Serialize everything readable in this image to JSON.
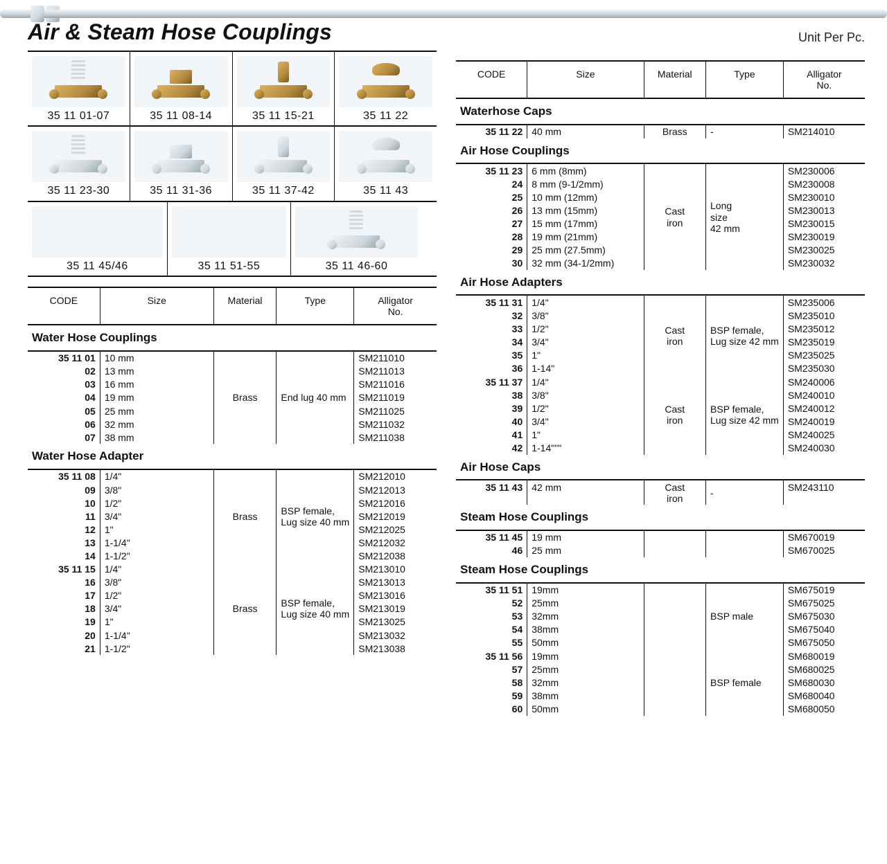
{
  "title": "Air & Steam Hose Couplings",
  "unitPer": "Unit Per Pc.",
  "codePrefix": "35 11 ",
  "columns": {
    "code": "CODE",
    "size": "Size",
    "material": "Material",
    "type": "Type",
    "alligator": "Alligator\nNo."
  },
  "photos": [
    {
      "caption": "35 11 01-07",
      "finish": "brass",
      "shape": "barb"
    },
    {
      "caption": "35 11 08-14",
      "finish": "brass",
      "shape": "hex"
    },
    {
      "caption": "35 11 15-21",
      "finish": "brass",
      "shape": "stem"
    },
    {
      "caption": "35 11 22",
      "finish": "brass",
      "shape": "wing"
    },
    {
      "caption": "35 11 23-30",
      "finish": "steel",
      "shape": "barb"
    },
    {
      "caption": "35 11 31-36",
      "finish": "steel",
      "shape": "hex"
    },
    {
      "caption": "35 11 37-42",
      "finish": "steel",
      "shape": "stem"
    },
    {
      "caption": "35 11 43",
      "finish": "steel",
      "shape": "wing"
    },
    {
      "caption": "35 11 45/46",
      "finish": "steel",
      "shape": "long2"
    },
    {
      "caption": "35 11 51-55",
      "finish": "steel",
      "shape": "long1"
    },
    {
      "caption": "35 11 46-60",
      "finish": "steel",
      "shape": "barb"
    }
  ],
  "leftSections": [
    {
      "title": "Water Hose Couplings",
      "material": "Brass",
      "type": "End lug 40 mm",
      "rows": [
        {
          "suffix": "01",
          "dispCode": "35 11 01",
          "size": "10 mm",
          "all": "SM211010"
        },
        {
          "suffix": "02",
          "dispCode": "02",
          "size": "13 mm",
          "all": "SM211013"
        },
        {
          "suffix": "03",
          "dispCode": "03",
          "size": "16 mm",
          "all": "SM211016"
        },
        {
          "suffix": "04",
          "dispCode": "04",
          "size": "19 mm",
          "all": "SM211019"
        },
        {
          "suffix": "05",
          "dispCode": "05",
          "size": "25 mm",
          "all": "SM211025"
        },
        {
          "suffix": "06",
          "dispCode": "06",
          "size": "32 mm",
          "all": "SM211032"
        },
        {
          "suffix": "07",
          "dispCode": "07",
          "size": "38 mm",
          "all": "SM211038"
        }
      ]
    },
    {
      "title": "Water Hose Adapter",
      "groups": [
        {
          "material": "Brass",
          "type": "BSP female, Lug size 40 mm",
          "rows": [
            {
              "dispCode": "35 11 08",
              "size": "1/4\"",
              "all": "SM212010"
            },
            {
              "dispCode": "09",
              "size": "3/8\"",
              "all": "SM212013"
            },
            {
              "dispCode": "10",
              "size": "1/2\"",
              "all": "SM212016"
            },
            {
              "dispCode": "11",
              "size": "3/4\"",
              "all": "SM212019"
            },
            {
              "dispCode": "12",
              "size": "1\"",
              "all": "SM212025"
            },
            {
              "dispCode": "13",
              "size": "1-1/4\"",
              "all": "SM212032"
            },
            {
              "dispCode": "14",
              "size": "1-1/2\"",
              "all": "SM212038"
            }
          ]
        },
        {
          "material": "Brass",
          "type": "BSP female, Lug size 40 mm",
          "rows": [
            {
              "dispCode": "35 11 15",
              "size": "1/4\"",
              "all": "SM213010"
            },
            {
              "dispCode": "16",
              "size": "3/8\"",
              "all": "SM213013"
            },
            {
              "dispCode": "17",
              "size": "1/2\"",
              "all": "SM213016"
            },
            {
              "dispCode": "18",
              "size": "3/4\"",
              "all": "SM213019"
            },
            {
              "dispCode": "19",
              "size": "1\"",
              "all": "SM213025"
            },
            {
              "dispCode": "20",
              "size": "1-1/4\"",
              "all": "SM213032"
            },
            {
              "dispCode": "21",
              "size": "1-1/2\"",
              "all": "SM213038"
            }
          ]
        }
      ]
    }
  ],
  "rightSections": [
    {
      "title": "Waterhose Caps",
      "groups": [
        {
          "material": "Brass",
          "type": "-",
          "rows": [
            {
              "dispCode": "35 11 22",
              "size": "40 mm",
              "all": "SM214010"
            }
          ]
        }
      ]
    },
    {
      "title": "Air Hose Couplings",
      "groups": [
        {
          "material": "Cast iron",
          "type": "Long size 42 mm",
          "typeLines": [
            "Long",
            "size",
            "42 mm"
          ],
          "rows": [
            {
              "dispCode": "35 11 23",
              "size": "6 mm (8mm)",
              "all": "SM230006"
            },
            {
              "dispCode": "24",
              "size": "8 mm (9-1/2mm)",
              "all": "SM230008"
            },
            {
              "dispCode": "25",
              "size": "10 mm (12mm)",
              "all": "SM230010"
            },
            {
              "dispCode": "26",
              "size": "13 mm (15mm)",
              "all": "SM230013"
            },
            {
              "dispCode": "27",
              "size": "15 mm (17mm)",
              "all": "SM230015"
            },
            {
              "dispCode": "28",
              "size": "19 mm (21mm)",
              "all": "SM230019"
            },
            {
              "dispCode": "29",
              "size": "25 mm (27.5mm)",
              "all": "SM230025"
            },
            {
              "dispCode": "30",
              "size": "32 mm (34-1/2mm)",
              "all": "SM230032"
            }
          ]
        }
      ]
    },
    {
      "title": "Air Hose Adapters",
      "groups": [
        {
          "material": "Cast iron",
          "type": "BSP female, Lug size 42 mm",
          "rows": [
            {
              "dispCode": "35 11 31",
              "size": "1/4\"",
              "all": "SM235006"
            },
            {
              "dispCode": "32",
              "size": "3/8\"",
              "all": "SM235010"
            },
            {
              "dispCode": "33",
              "size": "1/2\"",
              "all": "SM235012"
            },
            {
              "dispCode": "34",
              "size": "3/4\"",
              "all": "SM235019"
            },
            {
              "dispCode": "35",
              "size": "1\"",
              "all": "SM235025"
            },
            {
              "dispCode": "36",
              "size": "1-14\"",
              "all": "SM235030"
            }
          ]
        },
        {
          "material": "Cast iron",
          "type": "BSP female, Lug size 42 mm",
          "rows": [
            {
              "dispCode": "35 11 37",
              "size": "1/4\"",
              "all": "SM240006"
            },
            {
              "dispCode": "38",
              "size": "3/8\"",
              "all": "SM240010"
            },
            {
              "dispCode": "39",
              "size": "1/2\"",
              "all": "SM240012"
            },
            {
              "dispCode": "40",
              "size": "3/4\"",
              "all": "SM240019"
            },
            {
              "dispCode": "41",
              "size": "1\"",
              "all": "SM240025"
            },
            {
              "dispCode": "42",
              "size": "1-14\"\"\"",
              "all": "SM240030"
            }
          ]
        }
      ]
    },
    {
      "title": "Air Hose Caps",
      "groups": [
        {
          "material": "Cast iron",
          "type": "-",
          "rows": [
            {
              "dispCode": "35 11 43",
              "size": "42 mm",
              "all": "SM243110"
            }
          ]
        }
      ]
    },
    {
      "title": "Steam Hose Couplings",
      "groups": [
        {
          "material": "",
          "type": "",
          "rows": [
            {
              "dispCode": "35 11 45",
              "size": "19 mm",
              "all": "SM670019"
            },
            {
              "dispCode": "46",
              "size": "25 mm",
              "all": "SM670025"
            }
          ]
        }
      ]
    },
    {
      "title": "Steam Hose Couplings",
      "groups": [
        {
          "material": "",
          "type": "BSP male",
          "rows": [
            {
              "dispCode": "35 11 51",
              "size": "19mm",
              "all": "SM675019"
            },
            {
              "dispCode": "52",
              "size": "25mm",
              "all": "SM675025"
            },
            {
              "dispCode": "53",
              "size": "32mm",
              "all": "SM675030"
            },
            {
              "dispCode": "54",
              "size": "38mm",
              "all": "SM675040"
            },
            {
              "dispCode": "55",
              "size": "50mm",
              "all": "SM675050"
            }
          ]
        },
        {
          "material": "",
          "type": "BSP female",
          "rows": [
            {
              "dispCode": "35 11 56",
              "size": "19mm",
              "all": "SM680019"
            },
            {
              "dispCode": "57",
              "size": "25mm",
              "all": "SM680025"
            },
            {
              "dispCode": "58",
              "size": "32mm",
              "all": "SM680030"
            },
            {
              "dispCode": "59",
              "size": "38mm",
              "all": "SM680040"
            },
            {
              "dispCode": "60",
              "size": "50mm",
              "all": "SM680050"
            }
          ]
        }
      ]
    }
  ]
}
